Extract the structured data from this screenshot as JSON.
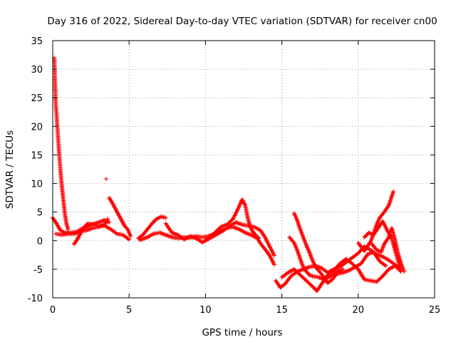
{
  "chart_data": {
    "type": "scatter",
    "title": "Day 316 of 2022, Sidereal Day-to-day VTEC variation (SDTVAR) for receiver cn00",
    "xlabel": "GPS time / hours",
    "ylabel": "SDTVAR / TECUs",
    "xlim": [
      0,
      25
    ],
    "ylim": [
      -10,
      35
    ],
    "xticks": [
      0,
      5,
      10,
      15,
      20,
      25
    ],
    "yticks": [
      -10,
      -5,
      0,
      5,
      10,
      15,
      20,
      25,
      30,
      35
    ],
    "grid": true,
    "marker": "+",
    "series": [
      {
        "name": "SDTVAR",
        "color": "#ff0000",
        "tracks": [
          [
            [
              0.0,
              4.0
            ],
            [
              0.25,
              3.0
            ],
            [
              0.5,
              1.8
            ],
            [
              0.8,
              1.4
            ],
            [
              1.2,
              1.4
            ],
            [
              1.6,
              1.6
            ],
            [
              2.0,
              2.2
            ],
            [
              2.5,
              2.8
            ],
            [
              3.0,
              3.2
            ],
            [
              3.4,
              3.6
            ],
            [
              3.7,
              3.2
            ]
          ],
          [
            [
              0.1,
              32.0
            ],
            [
              0.15,
              28.0
            ],
            [
              0.2,
              24.0
            ],
            [
              0.3,
              20.0
            ],
            [
              0.4,
              16.0
            ],
            [
              0.5,
              12.5
            ],
            [
              0.6,
              9.5
            ],
            [
              0.7,
              7.0
            ],
            [
              0.8,
              4.5
            ],
            [
              0.9,
              3.0
            ],
            [
              1.0,
              2.0
            ]
          ],
          [
            [
              0.2,
              1.2
            ],
            [
              0.6,
              1.0
            ],
            [
              1.0,
              1.2
            ],
            [
              1.4,
              1.2
            ],
            [
              1.8,
              1.6
            ],
            [
              2.2,
              1.8
            ],
            [
              2.6,
              2.2
            ],
            [
              3.0,
              2.4
            ],
            [
              3.4,
              2.8
            ],
            [
              3.6,
              3.8
            ]
          ],
          [
            [
              1.4,
              -0.6
            ],
            [
              1.6,
              0.2
            ],
            [
              1.8,
              1.2
            ],
            [
              2.0,
              2.2
            ],
            [
              2.3,
              3.0
            ],
            [
              2.6,
              2.8
            ],
            [
              3.0,
              2.6
            ],
            [
              3.4,
              2.6
            ],
            [
              3.8,
              2.0
            ],
            [
              4.2,
              1.2
            ],
            [
              4.6,
              1.0
            ],
            [
              5.0,
              0.2
            ]
          ],
          [
            [
              3.7,
              7.5
            ],
            [
              3.9,
              6.6
            ],
            [
              4.1,
              5.6
            ],
            [
              4.3,
              4.6
            ],
            [
              4.5,
              3.6
            ],
            [
              4.7,
              2.6
            ],
            [
              4.9,
              2.0
            ],
            [
              5.1,
              0.8
            ]
          ],
          [
            [
              5.6,
              0.4
            ],
            [
              5.9,
              1.0
            ],
            [
              6.2,
              2.0
            ],
            [
              6.5,
              3.0
            ],
            [
              6.8,
              3.8
            ],
            [
              7.1,
              4.2
            ],
            [
              7.4,
              4.0
            ]
          ],
          [
            [
              5.7,
              0.1
            ],
            [
              6.2,
              0.6
            ],
            [
              6.6,
              1.2
            ],
            [
              7.0,
              1.4
            ],
            [
              7.4,
              1.0
            ],
            [
              7.8,
              0.6
            ],
            [
              8.2,
              0.4
            ],
            [
              8.6,
              0.6
            ],
            [
              9.0,
              0.5
            ],
            [
              9.4,
              0.8
            ],
            [
              9.8,
              0.6
            ],
            [
              10.2,
              0.8
            ],
            [
              10.6,
              1.2
            ],
            [
              11.0,
              1.8
            ],
            [
              11.4,
              2.2
            ],
            [
              11.8,
              2.4
            ],
            [
              12.2,
              2.0
            ],
            [
              12.6,
              1.4
            ],
            [
              13.0,
              1.0
            ],
            [
              13.4,
              0.4
            ],
            [
              13.6,
              -0.5
            ],
            [
              13.9,
              -1.5
            ],
            [
              14.2,
              -2.6
            ],
            [
              14.5,
              -4.2
            ]
          ],
          [
            [
              7.4,
              3.0
            ],
            [
              7.8,
              1.4
            ],
            [
              8.2,
              1.0
            ],
            [
              8.6,
              0.2
            ],
            [
              9.0,
              0.8
            ],
            [
              9.4,
              0.4
            ],
            [
              9.8,
              -0.3
            ],
            [
              10.2,
              0.4
            ],
            [
              10.6,
              1.4
            ],
            [
              11.0,
              2.4
            ],
            [
              11.4,
              2.8
            ],
            [
              11.8,
              3.8
            ],
            [
              12.1,
              5.4
            ],
            [
              12.4,
              7.2
            ],
            [
              12.6,
              6.2
            ],
            [
              12.8,
              3.6
            ],
            [
              13.0,
              2.0
            ],
            [
              13.2,
              1.2
            ],
            [
              13.5,
              0.4
            ]
          ],
          [
            [
              10.0,
              0.0
            ],
            [
              10.4,
              0.6
            ],
            [
              10.8,
              1.2
            ],
            [
              11.2,
              1.8
            ],
            [
              11.6,
              2.6
            ],
            [
              12.0,
              3.2
            ],
            [
              12.4,
              2.8
            ],
            [
              12.8,
              2.6
            ],
            [
              13.2,
              2.4
            ],
            [
              13.6,
              1.8
            ],
            [
              13.9,
              0.6
            ],
            [
              14.2,
              -1.0
            ],
            [
              14.5,
              -2.6
            ]
          ],
          [
            [
              14.6,
              -7.0
            ],
            [
              14.9,
              -8.2
            ],
            [
              15.2,
              -7.6
            ],
            [
              15.6,
              -6.2
            ],
            [
              16.0,
              -5.4
            ],
            [
              16.4,
              -5.0
            ],
            [
              16.8,
              -4.6
            ],
            [
              17.2,
              -4.4
            ],
            [
              17.6,
              -4.8
            ],
            [
              18.0,
              -5.6
            ],
            [
              18.4,
              -5.0
            ],
            [
              18.8,
              -4.6
            ],
            [
              19.2,
              -3.8
            ],
            [
              19.6,
              -3.0
            ],
            [
              20.0,
              -2.2
            ],
            [
              20.4,
              -1.0
            ],
            [
              20.8,
              -1.6
            ],
            [
              21.2,
              -2.4
            ],
            [
              21.6,
              -2.8
            ],
            [
              22.0,
              -3.4
            ],
            [
              22.4,
              -4.2
            ],
            [
              22.7,
              -4.8
            ]
          ],
          [
            [
              15.0,
              -6.4
            ],
            [
              15.4,
              -5.6
            ],
            [
              15.8,
              -5.0
            ],
            [
              16.2,
              -6.0
            ],
            [
              16.6,
              -7.0
            ],
            [
              17.0,
              -8.0
            ],
            [
              17.3,
              -8.8
            ],
            [
              17.6,
              -7.6
            ],
            [
              18.0,
              -6.0
            ],
            [
              18.4,
              -5.2
            ],
            [
              18.8,
              -4.0
            ],
            [
              19.2,
              -3.2
            ],
            [
              19.6,
              -4.0
            ],
            [
              20.0,
              -5.0
            ],
            [
              20.4,
              -6.8
            ],
            [
              20.8,
              -7.0
            ],
            [
              21.2,
              -7.2
            ],
            [
              21.6,
              -6.2
            ],
            [
              22.0,
              -5.0
            ],
            [
              22.4,
              -4.4
            ],
            [
              22.8,
              -5.4
            ]
          ],
          [
            [
              15.8,
              4.8
            ],
            [
              16.0,
              3.6
            ],
            [
              16.2,
              2.0
            ],
            [
              16.4,
              0.6
            ],
            [
              16.6,
              -0.8
            ],
            [
              16.8,
              -2.0
            ],
            [
              17.0,
              -3.4
            ],
            [
              17.2,
              -4.6
            ],
            [
              17.4,
              -5.2
            ],
            [
              17.7,
              -6.2
            ],
            [
              18.0,
              -7.4
            ],
            [
              18.3,
              -6.8
            ],
            [
              18.6,
              -5.8
            ],
            [
              19.0,
              -5.6
            ],
            [
              19.4,
              -5.2
            ],
            [
              19.8,
              -4.6
            ],
            [
              20.2,
              -4.0
            ],
            [
              20.6,
              -2.4
            ],
            [
              21.0,
              -2.0
            ],
            [
              21.4,
              -3.6
            ],
            [
              21.8,
              -4.4
            ]
          ],
          [
            [
              15.5,
              0.6
            ],
            [
              15.8,
              -0.4
            ],
            [
              16.0,
              -1.6
            ],
            [
              16.2,
              -3.2
            ],
            [
              16.4,
              -4.6
            ],
            [
              16.6,
              -5.4
            ],
            [
              16.8,
              -6.0
            ],
            [
              17.0,
              -6.2
            ],
            [
              17.4,
              -6.4
            ],
            [
              17.8,
              -6.8
            ],
            [
              18.2,
              -6.2
            ],
            [
              18.6,
              -5.4
            ],
            [
              19.0,
              -5.0
            ]
          ],
          [
            [
              20.0,
              -0.4
            ],
            [
              20.4,
              -1.8
            ],
            [
              20.8,
              -0.2
            ],
            [
              21.0,
              1.2
            ],
            [
              21.2,
              2.8
            ],
            [
              21.4,
              4.0
            ],
            [
              21.7,
              5.0
            ],
            [
              22.0,
              6.2
            ],
            [
              22.3,
              8.6
            ]
          ],
          [
            [
              20.4,
              0.6
            ],
            [
              20.7,
              1.4
            ],
            [
              21.0,
              1.0
            ],
            [
              21.3,
              2.2
            ],
            [
              21.6,
              3.4
            ],
            [
              21.9,
              1.8
            ],
            [
              22.2,
              0.4
            ],
            [
              22.4,
              -1.6
            ],
            [
              22.6,
              -3.4
            ],
            [
              22.8,
              -5.2
            ]
          ],
          [
            [
              20.9,
              -0.6
            ],
            [
              21.2,
              -1.6
            ],
            [
              21.5,
              -2.0
            ],
            [
              21.7,
              -0.6
            ],
            [
              22.0,
              0.6
            ],
            [
              22.2,
              2.2
            ],
            [
              22.4,
              0.2
            ],
            [
              22.6,
              -2.2
            ],
            [
              22.8,
              -4.0
            ],
            [
              23.0,
              -5.4
            ]
          ]
        ],
        "outliers": [
          [
            3.5,
            10.8
          ]
        ]
      }
    ]
  }
}
